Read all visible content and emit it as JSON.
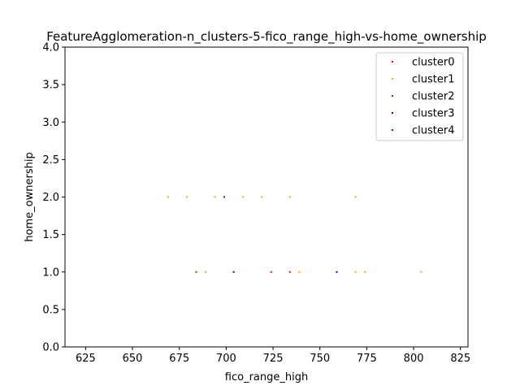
{
  "chart_data": {
    "type": "scatter",
    "title": "FeatureAgglomeration-n_clusters-5-fico_range_high-vs-home_ownership",
    "xlabel": "fico_range_high",
    "ylabel": "home_ownership",
    "xlim": [
      614,
      829
    ],
    "ylim": [
      0,
      4
    ],
    "xticks": [
      625,
      650,
      675,
      700,
      725,
      750,
      775,
      800,
      825
    ],
    "yticks": [
      0.0,
      0.5,
      1.0,
      1.5,
      2.0,
      2.5,
      3.0,
      3.5,
      4.0
    ],
    "grid": false,
    "legend_position": "top-right",
    "series": [
      {
        "name": "cluster0",
        "color": "#ff0000",
        "points": [
          [
            724,
            1
          ],
          [
            734,
            1
          ]
        ]
      },
      {
        "name": "cluster1",
        "color": "#ffa500",
        "points": [
          [
            669,
            2
          ],
          [
            679,
            2
          ],
          [
            694,
            2
          ],
          [
            709,
            2
          ],
          [
            719,
            2
          ],
          [
            734,
            2
          ],
          [
            769,
            2
          ],
          [
            689,
            1
          ],
          [
            739,
            1
          ],
          [
            769,
            1
          ],
          [
            774,
            1
          ],
          [
            804,
            1
          ]
        ]
      },
      {
        "name": "cluster2",
        "color": "#008000",
        "points": [
          [
            684,
            1
          ]
        ]
      },
      {
        "name": "cluster3",
        "color": "#0000ff",
        "points": [
          [
            704,
            1
          ],
          [
            759,
            1
          ]
        ]
      },
      {
        "name": "cluster4",
        "color": "#800080",
        "points": [
          [
            699,
            2
          ]
        ]
      }
    ]
  }
}
